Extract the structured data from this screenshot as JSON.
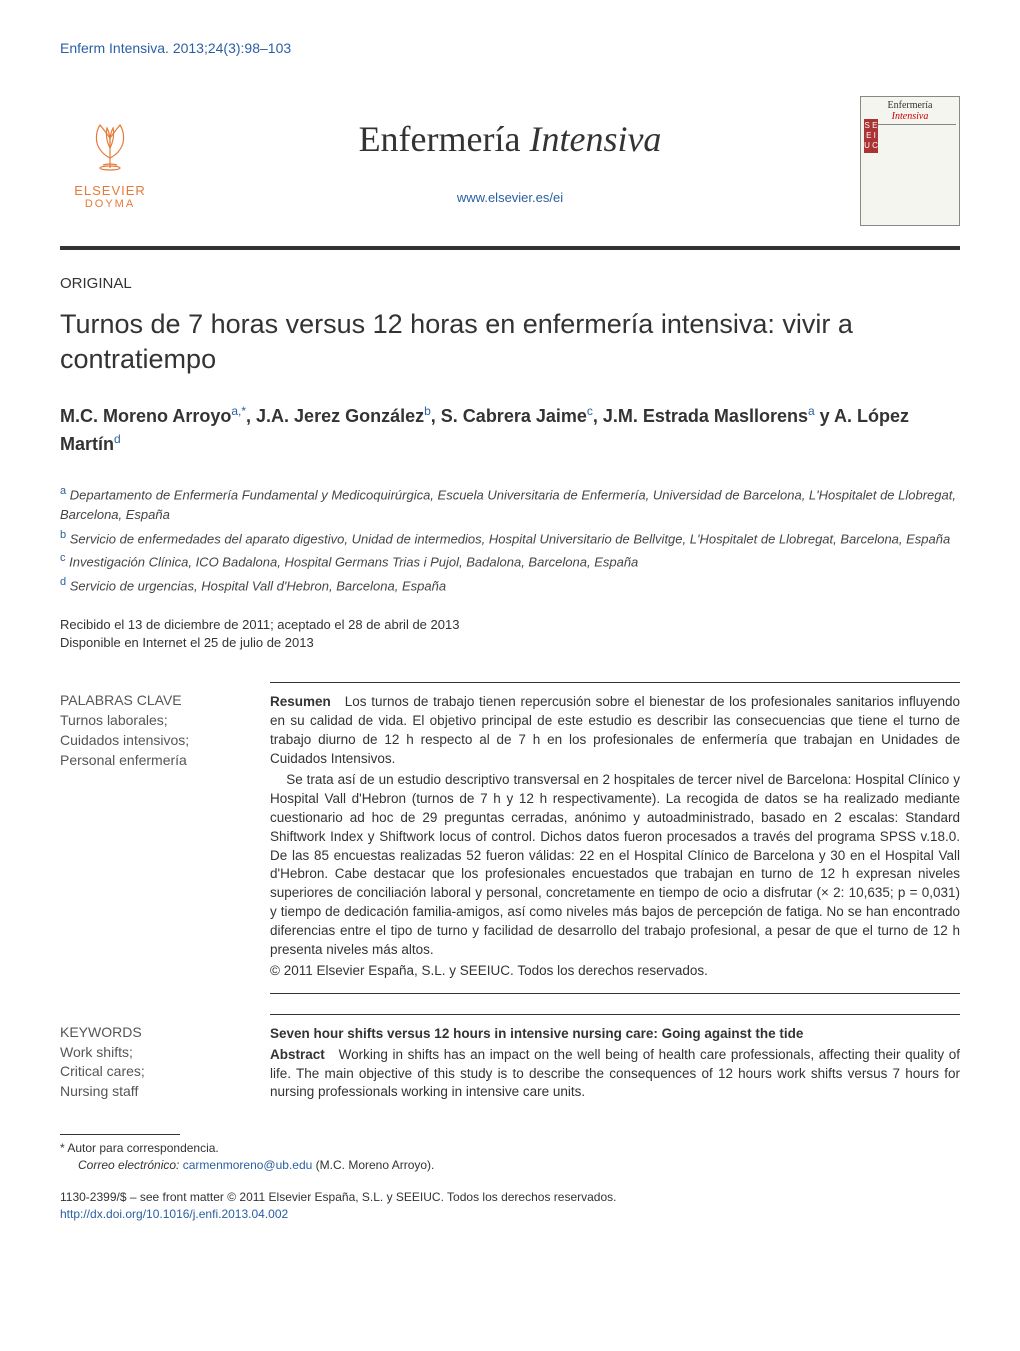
{
  "citation": "Enferm Intensiva. 2013;24(3):98–103",
  "publisher": {
    "name": "ELSEVIER",
    "sub": "DOYMA",
    "tree_color": "#e57a38"
  },
  "journal": {
    "title_part1": "Enfermería ",
    "title_part2": "Intensiva",
    "url": "www.elsevier.es/ei"
  },
  "cover": {
    "title1": "Enfermería",
    "title2": "Intensiva",
    "side_letters": "S E E I U C"
  },
  "article_type": "ORIGINAL",
  "article_title": "Turnos de 7 horas versus 12 horas en enfermería intensiva: vivir a contratiempo",
  "authors_html": "M.C. Moreno Arroyo|a,*|, J.A. Jerez González|b|, S. Cabrera Jaime|c|, J.M. Estrada Masllorens|a| y A. López Martín|d|",
  "affiliations": [
    {
      "sup": "a",
      "text": "Departamento de Enfermería Fundamental y Medicoquirúrgica, Escuela Universitaria de Enfermería, Universidad de Barcelona, L'Hospitalet de Llobregat, Barcelona, España"
    },
    {
      "sup": "b",
      "text": "Servicio de enfermedades del aparato digestivo, Unidad de intermedios, Hospital Universitario de Bellvitge, L'Hospitalet de Llobregat, Barcelona, España"
    },
    {
      "sup": "c",
      "text": "Investigación Clínica, ICO Badalona, Hospital Germans Trias i Pujol, Badalona, Barcelona, España"
    },
    {
      "sup": "d",
      "text": "Servicio de urgencias, Hospital Vall d'Hebron, Barcelona, España"
    }
  ],
  "dates": {
    "received_accepted": "Recibido el 13 de diciembre de 2011; aceptado el 28 de abril de 2013",
    "online": "Disponible en Internet el 25 de julio de 2013"
  },
  "spanish": {
    "keywords_heading": "PALABRAS CLAVE",
    "keywords": "Turnos laborales;\nCuidados intensivos;\nPersonal enfermería",
    "resumen_label": "Resumen",
    "resumen_p1": "Los turnos de trabajo tienen repercusión sobre el bienestar de los profesionales sanitarios influyendo en su calidad de vida. El objetivo principal de este estudio es describir las consecuencias que tiene el turno de trabajo diurno de 12 h respecto al de 7 h en los profesionales de enfermería que trabajan en Unidades de Cuidados Intensivos.",
    "resumen_p2": "Se trata así de un estudio descriptivo transversal en 2 hospitales de tercer nivel de Barcelona: Hospital Clínico y Hospital Vall d'Hebron (turnos de 7 h y 12 h respectivamente). La recogida de datos se ha realizado mediante cuestionario ad hoc de 29 preguntas cerradas, anónimo y autoadministrado, basado en 2 escalas: Standard Shiftwork Index y Shiftwork locus of control. Dichos datos fueron procesados a través del programa SPSS v.18.0. De las 85 encuestas realizadas 52 fueron válidas: 22 en el Hospital Clínico de Barcelona y 30 en el Hospital Vall d'Hebron. Cabe destacar que los profesionales encuestados que trabajan en turno de 12 h expresan niveles superiores de conciliación laboral y personal, concretamente en tiempo de ocio a disfrutar (× 2: 10,635; p = 0,031) y tiempo de dedicación familia-amigos, así como niveles más bajos de percepción de fatiga. No se han encontrado diferencias entre el tipo de turno y facilidad de desarrollo del trabajo profesional, a pesar de que el turno de 12 h presenta niveles más altos.",
    "resumen_copyright": "© 2011 Elsevier España, S.L. y SEEIUC. Todos los derechos reservados."
  },
  "english": {
    "keywords_heading": "KEYWORDS",
    "keywords": "Work shifts;\nCritical cares;\nNursing staff",
    "title": "Seven hour shifts versus 12 hours in intensive nursing care: Going against the tide",
    "abstract_label": "Abstract",
    "abstract_p1": "Working in shifts has an impact on the well being of health care professionals, affecting their quality of life. The main objective of this study is to describe the consequences of 12 hours work shifts versus 7 hours for nursing professionals working in intensive care units."
  },
  "footnotes": {
    "corr_marker": "*",
    "corr_text": "Autor para correspondencia.",
    "email_label": "Correo electrónico:",
    "email": "carmenmoreno@ub.edu",
    "email_author": "(M.C. Moreno Arroyo)."
  },
  "bottom": {
    "issn_line": "1130-2399/$ – see front matter © 2011 Elsevier España, S.L. y SEEIUC. Todos los derechos reservados.",
    "doi": "http://dx.doi.org/10.1016/j.enfi.2013.04.002"
  },
  "colors": {
    "link": "#2a5fa3",
    "accent": "#e57a38",
    "text": "#333333",
    "rule": "#333333"
  }
}
